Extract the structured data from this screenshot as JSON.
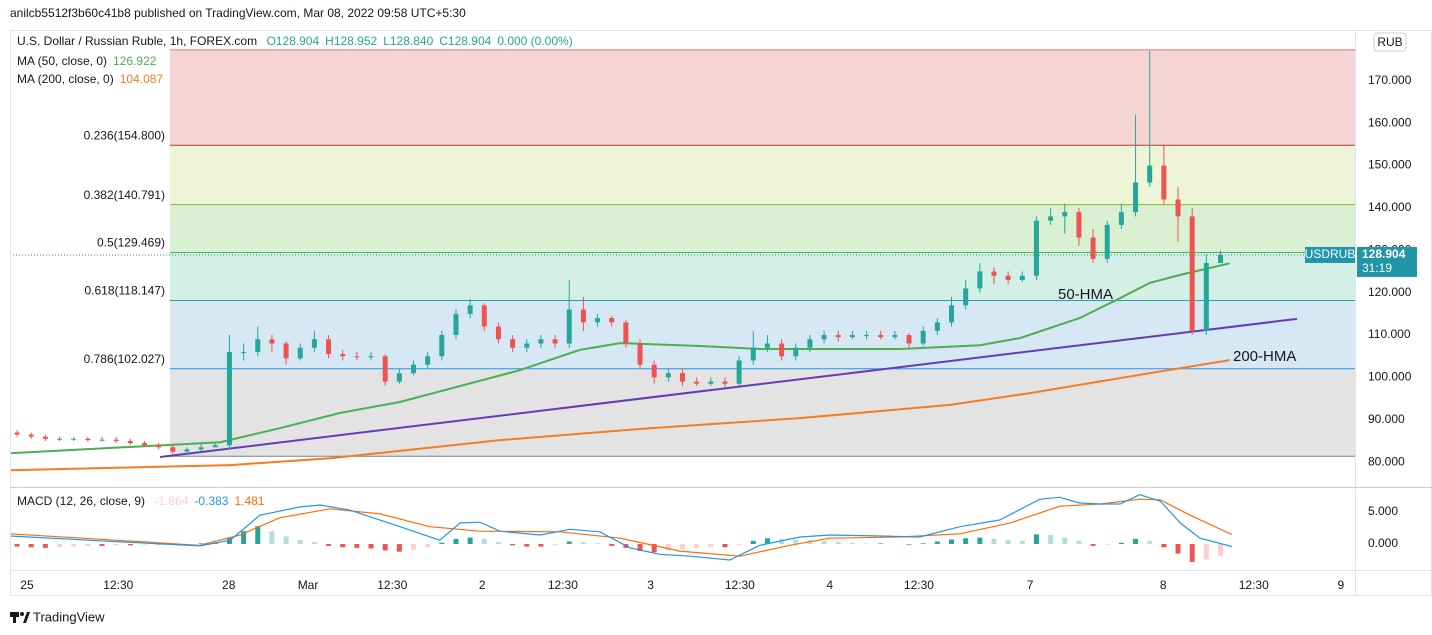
{
  "header": {
    "published": "anilcb5512f3b60c41b8 published on TradingView.com, Mar 08, 2022 09:58 UTC+5:30"
  },
  "chart_data": [
    {
      "type": "candlestick",
      "title": "U.S. Dollar / Russian Ruble, 1h, FOREX.com",
      "legend_values": [
        "O128.904",
        "H128.952",
        "L128.840",
        "C128.904",
        "0.000 (0.00%)"
      ],
      "symbol": "USDRUB",
      "currency": "RUB",
      "countdown": "31:19",
      "up_color": "#26a69a",
      "down_color": "#ef5350",
      "price_box_color": "#2196a8",
      "x": [
        1,
        3,
        5,
        7,
        9,
        11,
        13,
        15,
        17,
        19,
        21,
        23,
        25,
        27,
        29,
        31,
        33,
        35,
        37,
        39,
        41,
        43,
        45,
        47,
        49,
        51,
        53,
        55,
        57,
        59,
        61,
        63,
        65,
        67,
        69,
        71,
        73,
        75,
        77,
        79,
        81,
        83,
        85,
        87,
        89,
        91,
        93,
        95,
        97,
        99,
        101,
        103,
        105,
        107,
        109,
        111,
        113,
        115,
        117,
        119,
        121,
        123,
        125,
        127,
        129,
        131,
        133,
        135,
        137,
        139,
        141,
        143,
        145,
        147,
        149,
        151,
        153,
        155,
        157,
        159,
        161,
        163,
        165,
        167,
        169,
        171
      ],
      "open": [
        87,
        86.5,
        86,
        85.5,
        85.3,
        85.5,
        85.2,
        85.3,
        85,
        84.5,
        84,
        83.5,
        82.5,
        83,
        83.5,
        84,
        106,
        106,
        109,
        108,
        104.5,
        107,
        109,
        105.5,
        105,
        104.8,
        105,
        99,
        101,
        103,
        105,
        110,
        115,
        117,
        112,
        109,
        107,
        108,
        109,
        108,
        116,
        113,
        114,
        113,
        108,
        103,
        100,
        101,
        99,
        98.5,
        99,
        98.5,
        104,
        107,
        108,
        105,
        107,
        109,
        110,
        109.5,
        110,
        110,
        109.5,
        110,
        108,
        111,
        113,
        117,
        121,
        125,
        124,
        123,
        124,
        137,
        138,
        139,
        133,
        128,
        136,
        139,
        146,
        150,
        142,
        138,
        111,
        127
      ],
      "high": [
        87.5,
        87,
        86.5,
        86,
        86,
        86,
        86,
        86,
        85.5,
        85,
        84.5,
        84,
        83.5,
        84.5,
        84.5,
        110,
        108,
        112,
        110,
        108.5,
        108,
        111,
        110,
        106.5,
        106,
        106,
        105.5,
        102,
        104,
        106,
        111,
        116,
        118.5,
        117.5,
        113,
        110,
        109,
        110,
        110,
        123,
        119,
        115,
        114.5,
        113.5,
        109,
        104,
        102,
        102,
        100,
        100,
        100,
        105,
        111,
        110,
        109,
        108,
        110,
        111,
        111,
        111,
        111,
        111,
        111,
        110.5,
        112,
        114,
        119,
        123,
        127,
        126,
        125,
        125,
        138,
        140,
        141,
        140,
        135,
        137,
        141,
        162,
        177,
        155,
        145,
        140,
        129,
        130
      ],
      "low": [
        86,
        85.5,
        85,
        85,
        85,
        84.8,
        84.8,
        84.5,
        84,
        83.5,
        83,
        82,
        82,
        82.5,
        83.5,
        83,
        104,
        105,
        106,
        103,
        104,
        106,
        104.5,
        104,
        104,
        104,
        98,
        98.5,
        100.5,
        102,
        104,
        109,
        114,
        111,
        108,
        106,
        106,
        107,
        107,
        107,
        111,
        112,
        112,
        107,
        102,
        98.5,
        99,
        98,
        98,
        98,
        97.5,
        98,
        103,
        106,
        104,
        104,
        106,
        108,
        108.5,
        109,
        109,
        109,
        109,
        107,
        107.5,
        110,
        112,
        116,
        120,
        122,
        122,
        122.5,
        123,
        136,
        134,
        131,
        127,
        127,
        135,
        138,
        145,
        141,
        132,
        110,
        110,
        127.5
      ],
      "close": [
        86.5,
        86,
        85.5,
        85.3,
        85.5,
        85.2,
        85.3,
        85,
        84.5,
        84,
        83.5,
        82.5,
        83,
        83.5,
        84,
        106,
        106,
        109,
        108,
        104.5,
        107,
        109,
        105.5,
        105,
        104.8,
        105,
        99,
        101,
        103,
        105,
        110,
        115,
        117,
        112,
        109,
        107,
        108,
        109,
        108,
        116,
        113,
        114,
        113,
        108,
        103,
        100,
        101,
        99,
        98.5,
        99,
        98.5,
        104,
        107,
        108,
        105,
        107,
        109,
        110,
        109.5,
        110,
        110,
        109.5,
        110,
        108,
        111,
        113,
        117,
        121,
        125,
        124,
        123,
        124,
        137,
        138,
        139,
        133,
        128,
        136,
        139,
        146,
        150,
        142,
        138,
        111,
        127,
        128.904
      ],
      "series": [
        {
          "name": "MA (50, close, 0)",
          "annotation": "50-HMA",
          "color": "#4caf50",
          "x": [
            0,
            29.7,
            38.1,
            46.6,
            55.1,
            72,
            80.5,
            86.2,
            97.5,
            105.9,
            125.7,
            137,
            142.7,
            151.1,
            156.8,
            161,
            165.3,
            172.3
          ],
          "values": [
            82.1,
            84.7,
            88,
            91.6,
            94.2,
            101.7,
            106.5,
            108.1,
            107.4,
            106.7,
            106.7,
            107.6,
            109.3,
            114,
            118.7,
            122.3,
            124.2,
            126.922
          ]
        },
        {
          "name": "MA (200, close, 0)",
          "annotation": "200-HMA",
          "color": "#f57c20",
          "x": [
            0,
            31.1,
            45.2,
            69.2,
            90.4,
            111.6,
            132.8,
            144.1,
            161,
            172.3
          ],
          "values": [
            78.1,
            79.3,
            80.9,
            85.2,
            88,
            90.4,
            93.5,
            96.3,
            101,
            104.087
          ]
        }
      ],
      "trendline": {
        "color": "#673ab7",
        "x": [
          21.2,
          181.8
        ],
        "values": [
          81.2,
          113.8
        ]
      },
      "fib": {
        "levels": [
          {
            "value": 177.3,
            "color": "#e57373",
            "fill": "#f6d4d4"
          },
          {
            "value": 154.8,
            "label": "0.236(154.800)",
            "color": "#b03a3a",
            "fill": "#eef4d8"
          },
          {
            "value": 140.791,
            "label": "0.382(140.791)",
            "color": "#8bb32a",
            "fill": "#d9f0d3"
          },
          {
            "value": 129.469,
            "label": "0.5(129.469)",
            "color": "#4caf50",
            "fill": "#d3efe6"
          },
          {
            "value": 118.147,
            "label": "0.618(118.147)",
            "color": "#26a69a",
            "fill": "#d5e8f3"
          },
          {
            "value": 102.027,
            "label": "0.786(102.027)",
            "color": "#2196f3",
            "fill": "#e3e3e3"
          },
          {
            "value": 81.4,
            "color": "#808080"
          }
        ]
      },
      "xlim": [
        0,
        190
      ],
      "xticks": [
        {
          "value": 2.4,
          "label": "25"
        },
        {
          "value": 15.3,
          "label": "12:30"
        },
        {
          "value": 30.9,
          "label": "28"
        },
        {
          "value": 42.1,
          "label": "Mar"
        },
        {
          "value": 54,
          "label": "12:30"
        },
        {
          "value": 66.7,
          "label": "2"
        },
        {
          "value": 78.1,
          "label": "12:30"
        },
        {
          "value": 90.5,
          "label": "3"
        },
        {
          "value": 103.1,
          "label": "12:30"
        },
        {
          "value": 115.8,
          "label": "4"
        },
        {
          "value": 128.4,
          "label": "12:30"
        },
        {
          "value": 144.1,
          "label": "7"
        },
        {
          "value": 162.9,
          "label": "8"
        },
        {
          "value": 175.7,
          "label": "12:30"
        },
        {
          "value": 188,
          "label": "9"
        }
      ],
      "ylim": [
        74.6,
        182
      ],
      "yticks": [
        {
          "value": 80,
          "label": "80.000"
        },
        {
          "value": 90,
          "label": "90.000"
        },
        {
          "value": 100,
          "label": "100.000"
        },
        {
          "value": 110,
          "label": "110.000"
        },
        {
          "value": 120,
          "label": "120.000"
        },
        {
          "value": 130,
          "label": "130.000"
        },
        {
          "value": 140,
          "label": "140.000"
        },
        {
          "value": 150,
          "label": "150.000"
        },
        {
          "value": 160,
          "label": "160.000"
        },
        {
          "value": 170,
          "label": "170.000"
        }
      ],
      "grid": false
    },
    {
      "type": "macd",
      "title": "MACD (12, 26, close, 9)",
      "histogram": {
        "colors": {
          "rise_above": "#26a69a",
          "fall_above": "#b2dfdb",
          "fall_below": "#ef5350",
          "rise_below": "#ffcdd2"
        },
        "values": [
          -0.4,
          -0.5,
          -0.6,
          -0.5,
          -0.4,
          -0.3,
          -0.3,
          -0.2,
          -0.2,
          -0.1,
          -0.1,
          -0.1,
          0,
          0.1,
          0.2,
          1.0,
          2.0,
          2.8,
          2.0,
          1.2,
          0.6,
          0.3,
          -0.3,
          -0.5,
          -0.6,
          -0.7,
          -1.0,
          -1.2,
          -0.9,
          -0.5,
          0.2,
          0.8,
          1.0,
          0.8,
          0.3,
          -0.2,
          -0.4,
          -0.4,
          -0.2,
          0.4,
          0.3,
          0.1,
          -0.3,
          -0.6,
          -1.1,
          -1.3,
          -1.0,
          -0.8,
          -0.6,
          -0.5,
          -0.5,
          -0.2,
          0.5,
          0.9,
          0.8,
          0.7,
          0.6,
          0.5,
          0.3,
          0.2,
          0.1,
          0.1,
          0,
          -0.1,
          0.1,
          0.4,
          0.7,
          0.9,
          1.0,
          0.8,
          0.6,
          0.5,
          1.5,
          1.4,
          1.0,
          0.5,
          -0.3,
          -0.1,
          0.2,
          0.8,
          0.5,
          -0.5,
          -1.5,
          -2.8,
          -2.4,
          -1.864
        ]
      },
      "macd": {
        "color": "#2196f3",
        "x": [
          0,
          12.7,
          26.8,
          31.1,
          35.3,
          41,
          43.8,
          48,
          55.1,
          60.7,
          63.6,
          66.4,
          69.2,
          74.9,
          79.1,
          83.3,
          87.6,
          91.8,
          96.1,
          101.7,
          105.9,
          111.6,
          115.8,
          122.9,
          128.5,
          134.2,
          139.8,
          145.5,
          148.3,
          151.1,
          154,
          156.8,
          159.6,
          162.5,
          165.3,
          168.1,
          172.6
        ],
        "values": [
          1.25,
          0.5,
          -0.3,
          0.6,
          4.5,
          5.8,
          6.1,
          5.3,
          2.7,
          0.6,
          3.3,
          3.4,
          2,
          1.4,
          2.3,
          1.9,
          -0.6,
          -1.6,
          -1.9,
          -2.5,
          -0.2,
          1.1,
          1.4,
          1.25,
          1.1,
          2.7,
          3.75,
          7,
          7.3,
          6.4,
          6.25,
          6.25,
          7.7,
          6.7,
          3.3,
          0.9,
          -0.383
        ]
      },
      "signal": {
        "color": "#ff6d00",
        "x": [
          0,
          26.8,
          32.5,
          38.1,
          45.2,
          52.3,
          59.3,
          66.4,
          77.7,
          86.2,
          94.6,
          103.1,
          110.2,
          115.8,
          125.7,
          134.2,
          141.3,
          148.3,
          154,
          159.6,
          162.5,
          166.7,
          172.6
        ],
        "values": [
          1.6,
          -0.2,
          1.4,
          4.1,
          5.5,
          4.7,
          2.7,
          2,
          1.9,
          0.9,
          -1.1,
          -1.9,
          -0.2,
          0.9,
          1.1,
          1.6,
          3.3,
          5.9,
          6.25,
          7,
          6.9,
          4.5,
          1.481
        ]
      },
      "ylim": [
        -4.06,
        8.75
      ],
      "yticks": [
        {
          "value": 5,
          "label": "5.000"
        },
        {
          "value": 0,
          "label": "0.000"
        }
      ]
    }
  ],
  "footer": {
    "brand": "TradingView"
  }
}
